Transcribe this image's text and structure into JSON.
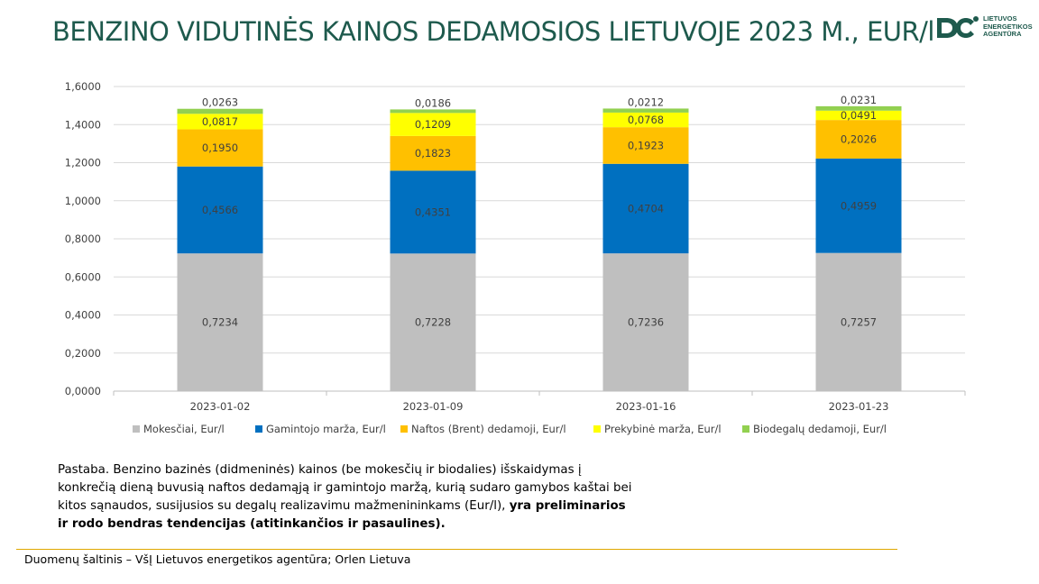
{
  "title": "BENZINO VIDUTINĖS KAINOS DEDAMOSIOS LIETUVOJE 2023 M., EUR/l",
  "logo": {
    "lines": [
      "LIETUVOS",
      "ENERGETIKOS",
      "AGENTŪRA"
    ],
    "icon": "lea-logo-icon",
    "color": "#1e5a4d"
  },
  "note": {
    "text": "Pastaba. Benzino bazinės (didmeninės) kainos (be mokesčių ir biodalies) išskaidymas į konkrečią dieną buvusią naftos dedamąją ir gamintojo maržą, kurią sudaro gamybos kaštai bei kitos sąnaudos, susijusios su degalų realizavimu mažmenininkams (Eur/l), ",
    "bold": "yra preliminarios ir rodo bendras tendencijas (atitinkančios ir pasaulines)."
  },
  "source": "Duomenų šaltinis – VšĮ Lietuvos energetikos agentūra; Orlen Lietuva",
  "chart_data": {
    "type": "bar",
    "stacked": true,
    "categories": [
      "2023-01-02",
      "2023-01-09",
      "2023-01-16",
      "2023-01-23"
    ],
    "ylim": [
      0,
      1.6
    ],
    "yticks": [
      "0,0000",
      "0,2000",
      "0,4000",
      "0,6000",
      "0,8000",
      "1,0000",
      "1,2000",
      "1,4000",
      "1,6000"
    ],
    "grid": true,
    "legend_position": "bottom",
    "series": [
      {
        "name": "Mokesčiai, Eur/l",
        "color": "#bfbfbf",
        "values": [
          0.7234,
          0.7228,
          0.7236,
          0.7257
        ],
        "labels": [
          "0,7234",
          "0,7228",
          "0,7236",
          "0,7257"
        ]
      },
      {
        "name": "Gamintojo marža, Eur/l",
        "color": "#0070c0",
        "values": [
          0.4566,
          0.4351,
          0.4704,
          0.4959
        ],
        "labels": [
          "0,4566",
          "0,4351",
          "0,4704",
          "0,4959"
        ]
      },
      {
        "name": "Naftos (Brent) dedamoji, Eur/l",
        "color": "#ffc000",
        "values": [
          0.195,
          0.1823,
          0.1923,
          0.2026
        ],
        "labels": [
          "0,1950",
          "0,1823",
          "0,1923",
          "0,2026"
        ]
      },
      {
        "name": "Prekybinė marža, Eur/l",
        "color": "#ffff00",
        "values": [
          0.0817,
          0.1209,
          0.0768,
          0.0491
        ],
        "labels": [
          "0,0817",
          "0,1209",
          "0,0768",
          "0,0491"
        ]
      },
      {
        "name": "Biodegalų dedamoji, Eur/l",
        "color": "#92d050",
        "values": [
          0.0263,
          0.0186,
          0.0212,
          0.0231
        ],
        "labels": [
          "0,0263",
          "0,0186",
          "0,0212",
          "0,0231"
        ]
      }
    ]
  }
}
